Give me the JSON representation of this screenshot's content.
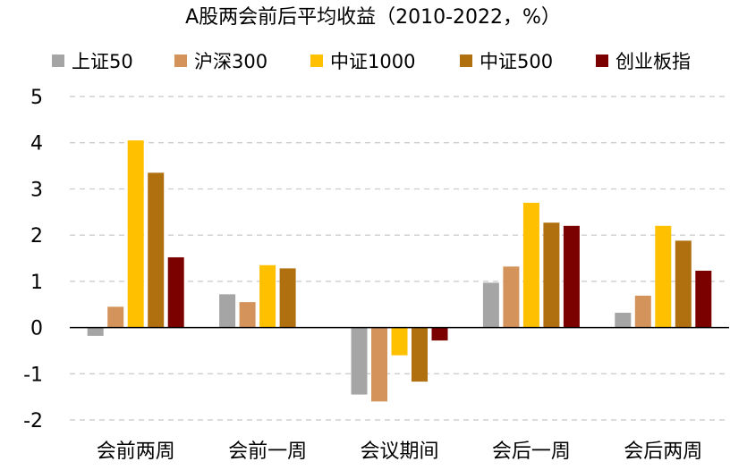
{
  "chart_data": {
    "type": "bar",
    "title": "A股两会前后平均收益（2010-2022，%）",
    "categories": [
      "会前两周",
      "会前一周",
      "会议期间",
      "会后一周",
      "会后两周"
    ],
    "series": [
      {
        "name": "上证50",
        "color": "#a5a5a5",
        "values": [
          -0.18,
          0.72,
          -1.45,
          0.97,
          0.32
        ]
      },
      {
        "name": "沪深300",
        "color": "#d4935b",
        "values": [
          0.45,
          0.55,
          -1.6,
          1.32,
          0.69
        ]
      },
      {
        "name": "中证1000",
        "color": "#ffc000",
        "values": [
          4.05,
          1.35,
          -0.6,
          2.7,
          2.2
        ]
      },
      {
        "name": "中证500",
        "color": "#b07010",
        "values": [
          3.35,
          1.28,
          -1.17,
          2.27,
          1.88
        ]
      },
      {
        "name": "创业板指",
        "color": "#7b0000",
        "values": [
          1.52,
          0,
          -0.28,
          2.2,
          1.23
        ]
      }
    ],
    "yticks": [
      "5",
      "4",
      "3",
      "2",
      "1",
      "0",
      "-1",
      "-2"
    ],
    "ylim": [
      -2,
      5
    ],
    "grid": true,
    "legend": "top"
  }
}
